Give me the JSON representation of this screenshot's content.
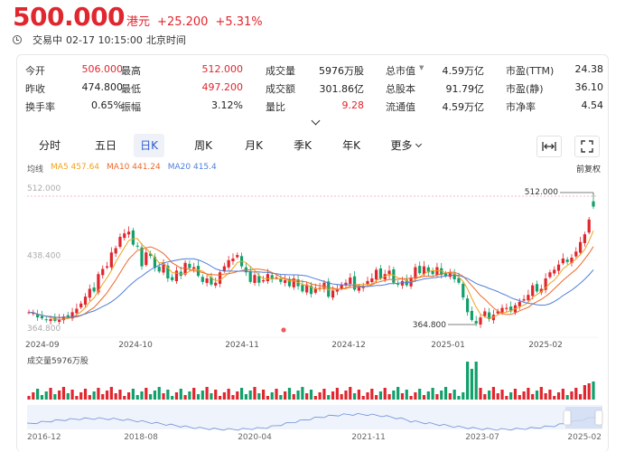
{
  "header": {
    "price": "500.000",
    "currency": "港元",
    "change": "+25.200",
    "change_pct": "+5.31%"
  },
  "status": {
    "state": "交易中",
    "time": "02-17 10:15:00",
    "zone": "北京时间"
  },
  "stats": [
    [
      {
        "label": "今开",
        "value": "506.000",
        "color": "red"
      },
      {
        "label": "最高",
        "value": "512.000",
        "color": "red"
      },
      {
        "label": "成交量",
        "value": "5976万股",
        "color": "black"
      },
      {
        "label": "总市值",
        "value": "4.59万亿",
        "color": "black",
        "info": true
      },
      {
        "label": "市盈(TTM)",
        "value": "24.38",
        "color": "black"
      }
    ],
    [
      {
        "label": "昨收",
        "value": "474.800",
        "color": "black"
      },
      {
        "label": "最低",
        "value": "497.200",
        "color": "red"
      },
      {
        "label": "成交额",
        "value": "301.86亿",
        "color": "black"
      },
      {
        "label": "总股本",
        "value": "91.79亿",
        "color": "black"
      },
      {
        "label": "市盈(静)",
        "value": "36.10",
        "color": "black"
      }
    ],
    [
      {
        "label": "换手率",
        "value": "0.65%",
        "color": "black"
      },
      {
        "label": "振幅",
        "value": "3.12%",
        "color": "black"
      },
      {
        "label": "量比",
        "value": "9.28",
        "color": "red"
      },
      {
        "label": "流通值",
        "value": "4.59万亿",
        "color": "black"
      },
      {
        "label": "市净率",
        "value": "4.54",
        "color": "black"
      }
    ]
  ],
  "tabs": [
    "分时",
    "五日",
    "日K",
    "周K",
    "月K",
    "季K",
    "年K",
    "更多"
  ],
  "active_tab": "日K",
  "toolbar": {
    "expand_icon": "fit-width-icon",
    "fullscreen_icon": "fullscreen-icon"
  },
  "legend": {
    "label": "均线",
    "ma5": "MA5 457.64",
    "ma10": "MA10 441.24",
    "ma20": "MA20 415.4",
    "restore": "前复权"
  },
  "colors": {
    "up": "#e0262e",
    "down": "#11a06b",
    "ma5": "#f0a21e",
    "ma10": "#ec6a2c",
    "ma20": "#4f7fdb",
    "accent": "#2a5ad7"
  },
  "chart_data": {
    "type": "candlestick",
    "title": "",
    "ylabels": [
      "512.000",
      "438.400",
      "364.800"
    ],
    "ylim": [
      364.8,
      512.0
    ],
    "xlabels": [
      "2024-09",
      "2024-10",
      "2024-11",
      "2024-12",
      "2025-01",
      "2025-02"
    ],
    "max_marker": "512.000",
    "min_marker": "364.800",
    "volume_label": "成交量5976万股",
    "navigator_labels": [
      "2016-12",
      "2018-08",
      "2020-04",
      "2021-11",
      "2023-07",
      "2025-02"
    ]
  }
}
